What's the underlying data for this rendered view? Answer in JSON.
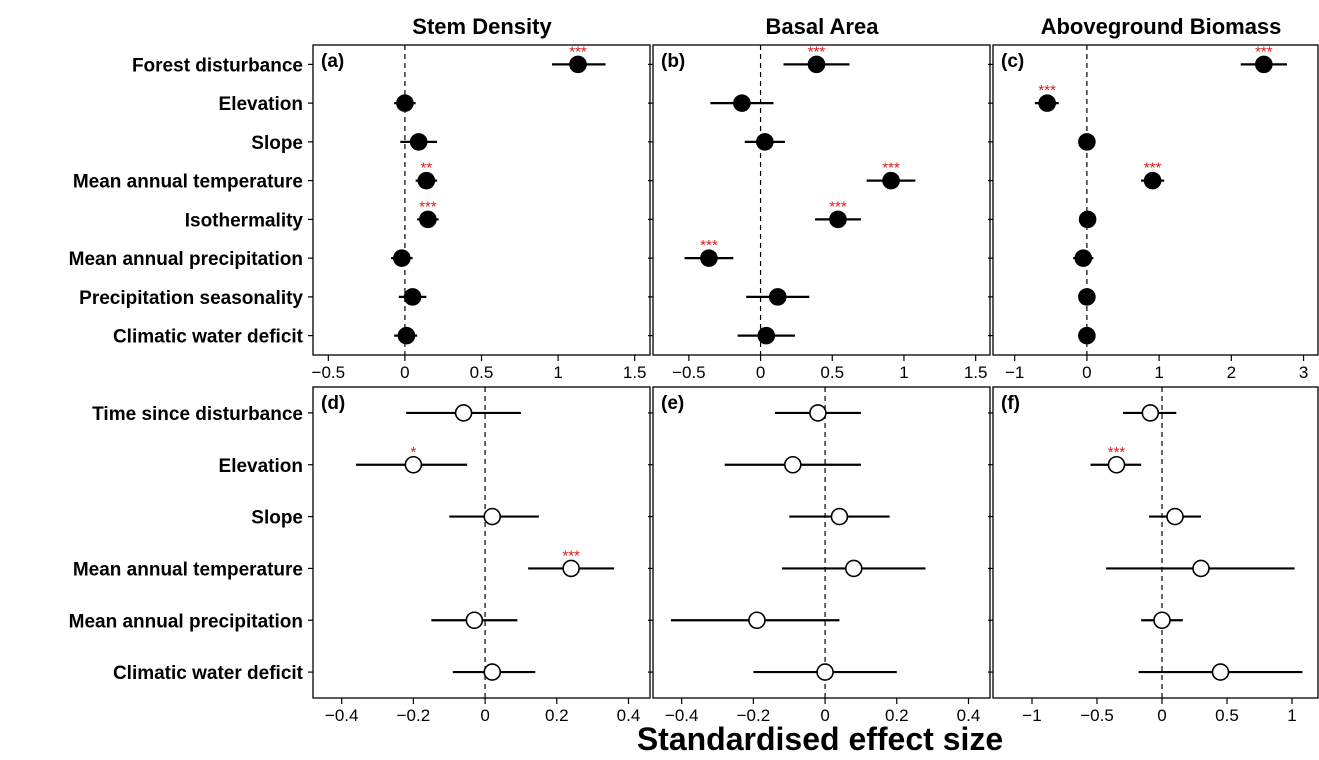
{
  "xlabel": "Standardised effect size",
  "columns": [
    "Stem Density",
    "Basal Area",
    "Aboveground Biomass"
  ],
  "colors": {
    "sig": "#e41a1c",
    "filled": "#000000",
    "open": "#ffffff",
    "line": "#000000"
  },
  "chart_data": [
    {
      "type": "scatter",
      "panel": "(a)",
      "title": "Stem Density",
      "marker": "filled",
      "categories": [
        "Forest disturbance",
        "Elevation",
        "Slope",
        "Mean annual temperature",
        "Isothermality",
        "Mean annual precipitation",
        "Precipitation seasonality",
        "Climatic water deficit"
      ],
      "estimate": [
        1.13,
        0.0,
        0.09,
        0.14,
        0.15,
        -0.02,
        0.05,
        0.01
      ],
      "ci_low": [
        0.96,
        -0.07,
        -0.03,
        0.07,
        0.08,
        -0.09,
        -0.04,
        -0.07
      ],
      "ci_high": [
        1.31,
        0.07,
        0.21,
        0.21,
        0.22,
        0.05,
        0.14,
        0.08
      ],
      "significance": [
        "***",
        "",
        "",
        "**",
        "***",
        "",
        "",
        ""
      ],
      "xticks": [
        -0.5,
        0,
        0.5,
        1,
        1.5
      ],
      "xlim": [
        -0.6,
        1.6
      ]
    },
    {
      "type": "scatter",
      "panel": "(b)",
      "title": "Basal Area",
      "marker": "filled",
      "categories": [
        "Forest disturbance",
        "Elevation",
        "Slope",
        "Mean annual temperature",
        "Isothermality",
        "Mean annual precipitation",
        "Precipitation seasonality",
        "Climatic water deficit"
      ],
      "estimate": [
        0.39,
        -0.13,
        0.03,
        0.91,
        0.54,
        -0.36,
        0.12,
        0.04
      ],
      "ci_low": [
        0.16,
        -0.35,
        -0.11,
        0.74,
        0.38,
        -0.53,
        -0.1,
        -0.16
      ],
      "ci_high": [
        0.62,
        0.09,
        0.17,
        1.08,
        0.7,
        -0.19,
        0.34,
        0.24
      ],
      "significance": [
        "***",
        "",
        "",
        "***",
        "***",
        "***",
        "",
        ""
      ],
      "xticks": [
        -0.5,
        0,
        0.5,
        1,
        1.5
      ],
      "xlim": [
        -0.75,
        1.6
      ]
    },
    {
      "type": "scatter",
      "panel": "(c)",
      "title": "Aboveground Biomass",
      "marker": "filled",
      "categories": [
        "Forest disturbance",
        "Elevation",
        "Slope",
        "Mean annual temperature",
        "Isothermality",
        "Mean annual precipitation",
        "Precipitation seasonality",
        "Climatic water deficit"
      ],
      "estimate": [
        2.45,
        -0.55,
        0.0,
        0.91,
        0.01,
        -0.05,
        0.0,
        0.0
      ],
      "ci_low": [
        2.13,
        -0.72,
        0.0,
        0.75,
        0.0,
        -0.19,
        0.0,
        0.0
      ],
      "ci_high": [
        2.77,
        -0.39,
        0.0,
        1.07,
        0.02,
        0.09,
        0.0,
        0.0
      ],
      "significance": [
        "***",
        "***",
        "",
        "***",
        "",
        "",
        "",
        ""
      ],
      "xticks": [
        -1,
        0,
        1,
        2,
        3
      ],
      "xlim": [
        -1.3,
        3.2
      ]
    },
    {
      "type": "scatter",
      "panel": "(d)",
      "title": "Stem Density",
      "marker": "open",
      "categories": [
        "Time since disturbance",
        "Elevation",
        "Slope",
        "Mean annual temperature",
        "Mean annual precipitation",
        "Climatic water deficit"
      ],
      "estimate": [
        -0.06,
        -0.2,
        0.02,
        0.24,
        -0.03,
        0.02
      ],
      "ci_low": [
        -0.22,
        -0.36,
        -0.1,
        0.12,
        -0.15,
        -0.09
      ],
      "ci_high": [
        0.1,
        -0.05,
        0.15,
        0.36,
        0.09,
        0.14
      ],
      "significance": [
        "",
        "*",
        "",
        "***",
        "",
        ""
      ],
      "xticks": [
        -0.4,
        -0.2,
        0,
        0.2,
        0.4
      ],
      "xlim": [
        -0.48,
        0.46
      ]
    },
    {
      "type": "scatter",
      "panel": "(e)",
      "title": "Basal Area",
      "marker": "open",
      "categories": [
        "Time since disturbance",
        "Elevation",
        "Slope",
        "Mean annual temperature",
        "Mean annual precipitation",
        "Climatic water deficit"
      ],
      "estimate": [
        -0.02,
        -0.09,
        0.04,
        0.08,
        -0.19,
        0.0
      ],
      "ci_low": [
        -0.14,
        -0.28,
        -0.1,
        -0.12,
        -0.43,
        -0.2
      ],
      "ci_high": [
        0.1,
        0.1,
        0.18,
        0.28,
        0.04,
        0.2
      ],
      "significance": [
        "",
        "",
        "",
        "",
        "",
        ""
      ],
      "xticks": [
        -0.4,
        -0.2,
        0,
        0.2,
        0.4
      ],
      "xlim": [
        -0.48,
        0.46
      ]
    },
    {
      "type": "scatter",
      "panel": "(f)",
      "title": "Aboveground Biomass",
      "marker": "open",
      "categories": [
        "Time since disturbance",
        "Elevation",
        "Slope",
        "Mean annual temperature",
        "Mean annual precipitation",
        "Climatic water deficit"
      ],
      "estimate": [
        -0.09,
        -0.35,
        0.1,
        0.3,
        0.0,
        0.45
      ],
      "ci_low": [
        -0.3,
        -0.55,
        -0.1,
        -0.43,
        -0.16,
        -0.18
      ],
      "ci_high": [
        0.11,
        -0.16,
        0.3,
        1.02,
        0.16,
        1.08
      ],
      "significance": [
        "",
        "***",
        "",
        "",
        "",
        ""
      ],
      "xticks": [
        -1,
        -0.5,
        0,
        0.5,
        1
      ],
      "xlim": [
        -1.3,
        1.2
      ]
    }
  ]
}
